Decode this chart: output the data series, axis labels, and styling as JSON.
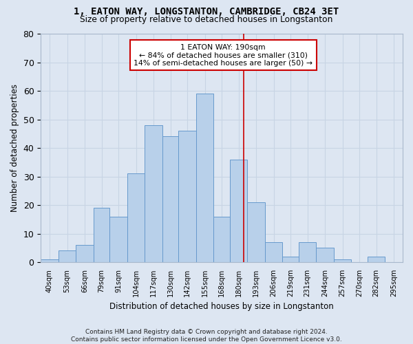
{
  "title": "1, EATON WAY, LONGSTANTON, CAMBRIDGE, CB24 3ET",
  "subtitle": "Size of property relative to detached houses in Longstanton",
  "xlabel": "Distribution of detached houses by size in Longstanton",
  "ylabel": "Number of detached properties",
  "bin_labels": [
    "40sqm",
    "53sqm",
    "66sqm",
    "79sqm",
    "91sqm",
    "104sqm",
    "117sqm",
    "130sqm",
    "142sqm",
    "155sqm",
    "168sqm",
    "180sqm",
    "193sqm",
    "206sqm",
    "219sqm",
    "231sqm",
    "244sqm",
    "257sqm",
    "270sqm",
    "282sqm",
    "295sqm"
  ],
  "bar_heights": [
    1,
    4,
    6,
    19,
    16,
    31,
    48,
    44,
    46,
    59,
    16,
    36,
    21,
    7,
    2,
    7,
    5,
    1,
    0,
    2,
    0
  ],
  "bar_color": "#b8d0ea",
  "bar_edge_color": "#6699cc",
  "grid_color": "#c8d4e4",
  "background_color": "#dde6f2",
  "vline_x": 190,
  "vline_color": "#cc0000",
  "annotation_text": "1 EATON WAY: 190sqm\n← 84% of detached houses are smaller (310)\n14% of semi-detached houses are larger (50) →",
  "annotation_box_color": "#ffffff",
  "annotation_edge_color": "#cc0000",
  "footnote": "Contains HM Land Registry data © Crown copyright and database right 2024.\nContains public sector information licensed under the Open Government Licence v3.0.",
  "ylim": [
    0,
    80
  ],
  "yticks": [
    0,
    10,
    20,
    30,
    40,
    50,
    60,
    70,
    80
  ],
  "bin_edges": [
    40,
    53,
    66,
    79,
    91,
    104,
    117,
    130,
    142,
    155,
    168,
    180,
    193,
    206,
    219,
    231,
    244,
    257,
    270,
    282,
    295,
    308
  ]
}
